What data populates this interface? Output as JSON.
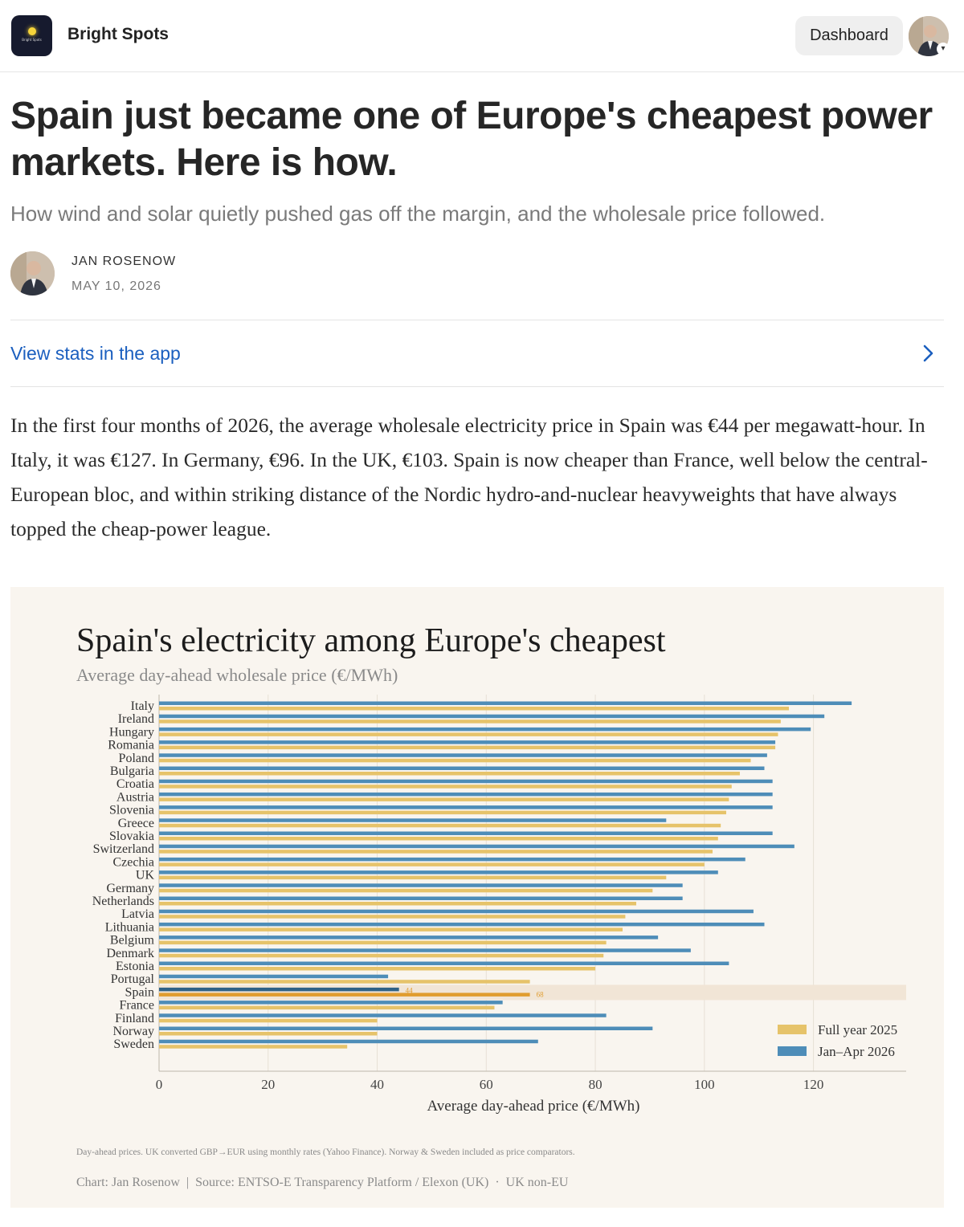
{
  "header": {
    "publication": "Bright Spots",
    "logo_text": "Bright Spots",
    "dashboard_label": "Dashboard",
    "caret": "▾"
  },
  "article": {
    "title": "Spain just became one of Europe's cheapest power markets. Here is how.",
    "subtitle": "How wind and solar quietly pushed gas off the margin, and the wholesale price followed.",
    "author": "JAN ROSENOW",
    "date": "MAY 10, 2026",
    "stats_link": "View stats in the app",
    "paragraph": "In the first four months of 2026, the average wholesale electricity price in Spain was €44 per megawatt-hour. In Italy, it was €127. In Germany, €96. In the UK, €103. Spain is now cheaper than France, well below the central-European bloc, and within striking distance of the Nordic hydro-and-nuclear heavyweights that have always topped the cheap-power league."
  },
  "icons": {
    "logo": "sun-logo-icon",
    "chevron": "chevron-right-icon",
    "avatar": "person-avatar-icon"
  },
  "colors": {
    "link": "#1b5fbf",
    "full_year": "#e6c36a",
    "jan_apr": "#4e8db8",
    "highlight_full_year": "#e09c2e",
    "highlight_jan_apr": "#2f6287",
    "highlight_band": "#f1e5d6",
    "chart_bg": "#f9f5ef"
  },
  "chart_data": {
    "type": "bar",
    "orientation": "horizontal",
    "title": "Spain's electricity among Europe's cheapest",
    "subtitle": "Average day-ahead wholesale price (€/MWh)",
    "xlabel": "Average day-ahead price (€/MWh)",
    "ylabel": "",
    "xlim": [
      0,
      137
    ],
    "xticks": [
      0,
      20,
      40,
      60,
      80,
      100,
      120
    ],
    "grid": true,
    "legend_position": "bottom-right",
    "highlight": "Spain",
    "highlight_labels": {
      "jan_apr": "44",
      "full_year": "68"
    },
    "categories": [
      "Italy",
      "Ireland",
      "Hungary",
      "Romania",
      "Poland",
      "Bulgaria",
      "Croatia",
      "Austria",
      "Slovenia",
      "Greece",
      "Slovakia",
      "Switzerland",
      "Czechia",
      "UK",
      "Germany",
      "Netherlands",
      "Latvia",
      "Lithuania",
      "Belgium",
      "Denmark",
      "Estonia",
      "Portugal",
      "Spain",
      "France",
      "Finland",
      "Norway",
      "Sweden"
    ],
    "series": [
      {
        "name": "Jan–Apr 2026",
        "values": [
          127,
          122,
          119.5,
          113,
          111.5,
          111,
          112.5,
          112.5,
          112.5,
          93,
          112.5,
          116.5,
          107.5,
          102.5,
          96,
          96,
          109,
          111,
          91.5,
          97.5,
          104.5,
          42,
          44,
          63,
          82,
          90.5,
          69.5
        ]
      },
      {
        "name": "Full year 2025",
        "values": [
          115.5,
          114,
          113.5,
          113,
          108.5,
          106.5,
          105,
          104.5,
          104,
          103,
          102.5,
          101.5,
          100,
          93,
          90.5,
          87.5,
          85.5,
          85,
          82,
          81.5,
          80,
          68,
          68,
          61.5,
          40,
          40,
          34.5
        ]
      }
    ],
    "footnote": "Day-ahead prices. UK converted GBP→EUR using monthly rates (Yahoo Finance). Norway & Sweden included as price comparators.",
    "source": "Chart: Jan Rosenow  |  Source: ENTSO-E Transparency Platform / Elexon (UK)  ·  UK non-EU"
  }
}
